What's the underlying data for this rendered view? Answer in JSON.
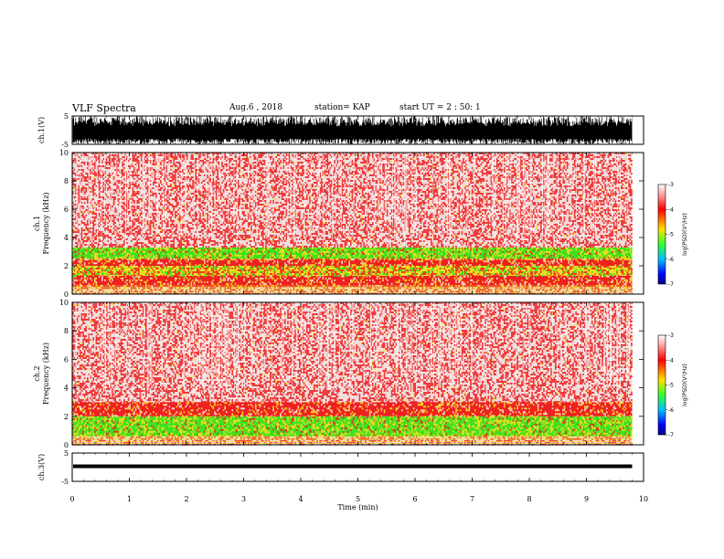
{
  "header": {
    "title": "VLF Spectra",
    "date": "Aug.6 , 2018",
    "station": "station= KAP",
    "start": "start UT = 2 : 50: 1"
  },
  "colors": {
    "spectrum_bg": "#f2dcdc",
    "spectrum_red": "#ee2020",
    "spectrum_yellow": "#f0e020",
    "spectrum_green": "#40e020",
    "waveform": "#000000"
  },
  "chart_data": [
    {
      "type": "line",
      "panel": "ch1-waveform",
      "ylabel": "ch.1(V)",
      "ylim": [
        -5,
        5
      ],
      "yticks": [
        "5",
        "-5"
      ],
      "xlim": [
        0,
        10
      ],
      "description_values": {
        "x_extent_min": [
          0,
          9.8
        ],
        "amplitude": "saturated ±5"
      }
    },
    {
      "type": "heatmap",
      "panel": "ch1-spectrum",
      "ylabel": "ch.1\nFrequency (kHz)",
      "ylabel_line1": "ch.1",
      "ylabel_line2": "Frequency (kHz)",
      "ylim": [
        0,
        10
      ],
      "yticks": [
        "0",
        "2",
        "4",
        "6",
        "8",
        "10"
      ],
      "xlim": [
        0,
        10
      ],
      "time_extent": [
        0,
        9.8
      ],
      "bands": [
        {
          "f_lo": 0.0,
          "f_hi": 0.5,
          "level": -3.2
        },
        {
          "f_lo": 0.5,
          "f_hi": 1.3,
          "level": -3.8
        },
        {
          "f_lo": 1.3,
          "f_hi": 2.0,
          "level": -4.6
        },
        {
          "f_lo": 2.0,
          "f_hi": 2.5,
          "level": -3.8
        },
        {
          "f_lo": 2.5,
          "f_hi": 3.3,
          "level": -4.8
        },
        {
          "f_lo": 3.3,
          "f_hi": 10.0,
          "level": -3.3
        }
      ]
    },
    {
      "type": "heatmap",
      "panel": "ch2-spectrum",
      "ylabel": "ch.2\nFrequency (kHz)",
      "ylabel_line1": "ch.2",
      "ylabel_line2": "Frequency (kHz)",
      "ylim": [
        0,
        10
      ],
      "yticks": [
        "0",
        "2",
        "4",
        "6",
        "8",
        "10"
      ],
      "xlim": [
        0,
        10
      ],
      "time_extent": [
        0,
        9.8
      ],
      "bands": [
        {
          "f_lo": 0.0,
          "f_hi": 0.6,
          "level": -3.3
        },
        {
          "f_lo": 0.6,
          "f_hi": 2.0,
          "level": -4.9
        },
        {
          "f_lo": 2.0,
          "f_hi": 3.0,
          "level": -4.2
        },
        {
          "f_lo": 3.0,
          "f_hi": 10.0,
          "level": -3.1
        }
      ]
    },
    {
      "type": "line",
      "panel": "ch3-waveform",
      "ylabel": "ch.3(V)",
      "ylim": [
        -5,
        5
      ],
      "yticks": [
        "5",
        "-5"
      ],
      "xlim": [
        0,
        10
      ],
      "level_v": 0.0
    }
  ],
  "xaxis": {
    "label": "Time (min)",
    "ticks": [
      "0",
      "1",
      "2",
      "3",
      "4",
      "5",
      "6",
      "7",
      "8",
      "9",
      "10"
    ]
  },
  "colorbar": {
    "label": "log(PSD)(V²/Hz)",
    "ticks": [
      "-3",
      "-4",
      "-5",
      "-6",
      "-7"
    ],
    "range": [
      -7,
      -3
    ]
  }
}
